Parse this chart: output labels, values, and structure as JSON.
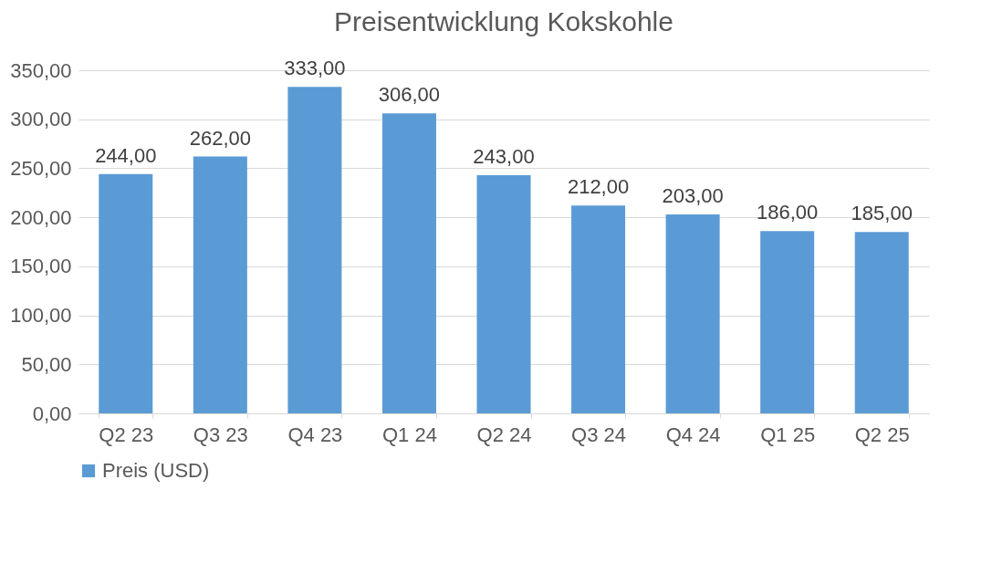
{
  "chart_data": {
    "type": "bar",
    "title": "Preisentwicklung Kokskohle",
    "categories": [
      "Q2 23",
      "Q3 23",
      "Q4 23",
      "Q1 24",
      "Q2 24",
      "Q3 24",
      "Q4 24",
      "Q1 25",
      "Q2 25"
    ],
    "series": [
      {
        "name": "Preis (USD)",
        "color": "#5b9bd5",
        "values": [
          244,
          262,
          333,
          306,
          243,
          212,
          203,
          186,
          185
        ],
        "value_labels": [
          "244,00",
          "262,00",
          "333,00",
          "306,00",
          "243,00",
          "212,00",
          "203,00",
          "186,00",
          "185,00"
        ]
      }
    ],
    "ylim": [
      0,
      350
    ],
    "yticks": [
      {
        "value": 0,
        "label": "0,00"
      },
      {
        "value": 50,
        "label": "50,00"
      },
      {
        "value": 100,
        "label": "100,00"
      },
      {
        "value": 150,
        "label": "150,00"
      },
      {
        "value": 200,
        "label": "200,00"
      },
      {
        "value": 250,
        "label": "250,00"
      },
      {
        "value": 300,
        "label": "300,00"
      },
      {
        "value": 350,
        "label": "350,00"
      }
    ],
    "grid": "y",
    "legend": "bottom"
  }
}
